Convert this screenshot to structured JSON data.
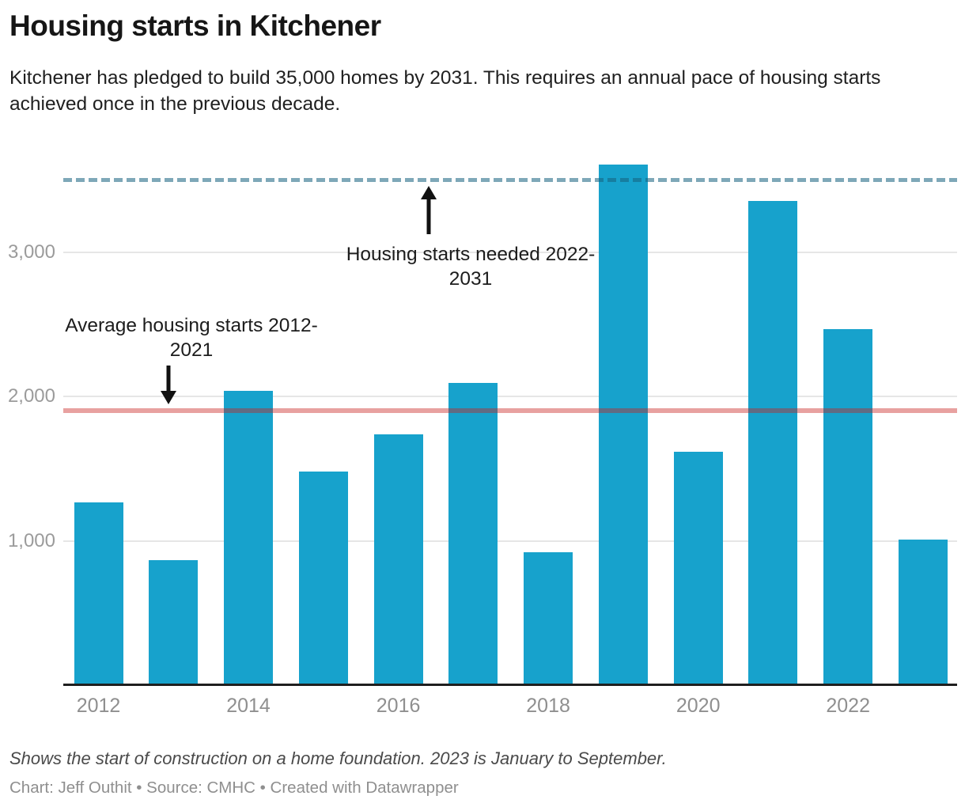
{
  "header": {
    "title": "Housing starts in Kitchener",
    "subtitle": "Kitchener has pledged to build 35,000 homes by 2031. This requires an annual pace of housing starts achieved once in the previous decade."
  },
  "chart_data": {
    "type": "bar",
    "title": "Housing starts in Kitchener",
    "categories": [
      "2012",
      "2013",
      "2014",
      "2015",
      "2016",
      "2017",
      "2018",
      "2019",
      "2020",
      "2021",
      "2022",
      "2023"
    ],
    "values": [
      1268,
      868,
      2041,
      1482,
      1740,
      2096,
      923,
      3608,
      1619,
      3356,
      2468,
      1007
    ],
    "xlabel": "",
    "ylabel": "",
    "ylim": [
      0,
      3700
    ],
    "yticks": [
      1000,
      2000,
      3000
    ],
    "ytick_labels": [
      "1,000",
      "2,000",
      "3,000"
    ],
    "xtick_labels": [
      "2012",
      "2014",
      "2016",
      "2018",
      "2020",
      "2022"
    ],
    "grid": "horizontal",
    "legend": "none",
    "bar_color": "#17a2cc",
    "reference_lines": [
      {
        "id": "needed",
        "value": 3500,
        "style": "dashed",
        "color": "#15607d",
        "opacity": 0.55,
        "label": "Housing starts needed 2022-2031",
        "label_line1": "Housing starts needed 2022-",
        "label_line2": "2031"
      },
      {
        "id": "average",
        "value": 1900,
        "style": "solid",
        "color": "#c71e1d",
        "opacity": 0.42,
        "label": "Average housing starts 2012-2021",
        "label_line1": "Average housing starts 2012-",
        "label_line2": "2021"
      }
    ]
  },
  "footer": {
    "note": "Shows the start of construction on a home foundation. 2023 is January to September.",
    "credit": "Chart: Jeff Outhit • Source: CMHC • Created with Datawrapper"
  }
}
